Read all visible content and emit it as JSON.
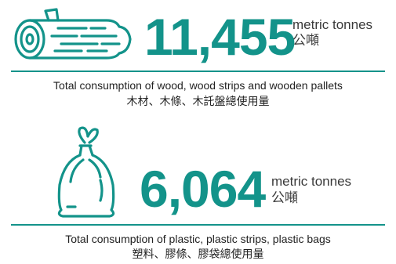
{
  "wood": {
    "icon": "log-icon",
    "value": "11,455",
    "unit_en": "metric tonnes",
    "unit_zh": "公噸",
    "caption_en": "Total consumption of wood, wood strips and wooden pallets",
    "caption_zh": "木材、木條、木託盤總使用量"
  },
  "plastic": {
    "icon": "plastic-bag-icon",
    "value": "6,064",
    "unit_en": "metric tonnes",
    "unit_zh": "公噸",
    "caption_en": "Total consumption of plastic, plastic strips, plastic bags",
    "caption_zh": "塑料、膠條、膠袋總使用量"
  },
  "colors": {
    "accent": "#13938a",
    "text": "#222222"
  }
}
